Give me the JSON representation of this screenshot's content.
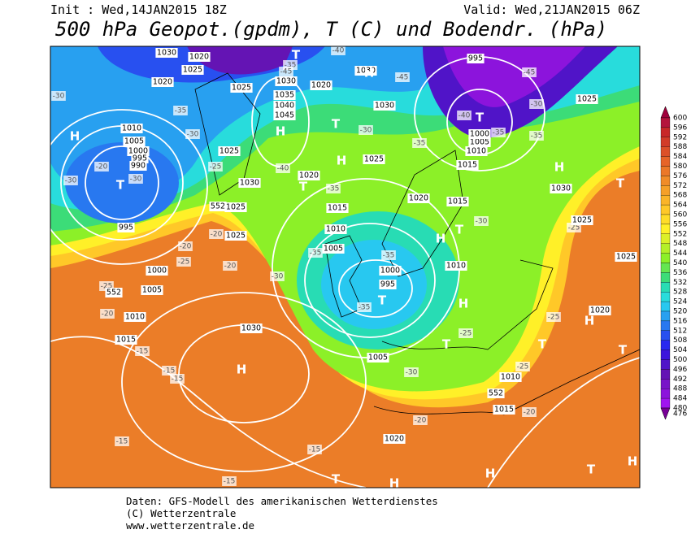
{
  "header": {
    "init": "Init : Wed,14JAN2015 18Z",
    "valid": "Valid: Wed,21JAN2015 06Z",
    "title": "500 hPa Geopot.(gpdm), T (C) und Bodendr. (hPa)"
  },
  "colorbar": {
    "levels": [
      "600",
      "596",
      "592",
      "588",
      "584",
      "580",
      "576",
      "572",
      "568",
      "564",
      "560",
      "556",
      "552",
      "548",
      "544",
      "540",
      "536",
      "532",
      "528",
      "524",
      "520",
      "516",
      "512",
      "508",
      "504",
      "500",
      "496",
      "492",
      "488",
      "484",
      "480",
      "476"
    ],
    "colors": [
      "#a0003c",
      "#b4143c",
      "#c82828",
      "#d23c28",
      "#dc5028",
      "#e66428",
      "#eb7828",
      "#f08c28",
      "#f5a028",
      "#fab428",
      "#ffc828",
      "#ffdc28",
      "#fff028",
      "#dcf028",
      "#b4f028",
      "#8cf028",
      "#64e650",
      "#3cdc78",
      "#28dcb4",
      "#28dcdc",
      "#28c8f0",
      "#28a0f0",
      "#2878f0",
      "#2850f0",
      "#2828f0",
      "#3c14dc",
      "#5014c8",
      "#6414b4",
      "#7814c8",
      "#8c14dc",
      "#a014f0",
      "#780096"
    ]
  },
  "map_labels": {
    "pressure": [
      "1030",
      "1020",
      "1025",
      "1020",
      "1025",
      "1030",
      "1035",
      "1040",
      "1045",
      "1020",
      "1030",
      "1030",
      "995",
      "1025",
      "1010",
      "1005",
      "1000",
      "995",
      "990",
      "1025",
      "1025",
      "1030",
      "1020",
      "1015",
      "1010",
      "1005",
      "1000",
      "995",
      "1020",
      "1015",
      "1010",
      "995",
      "1025",
      "1025",
      "1000",
      "1005",
      "1010",
      "1015",
      "1030",
      "1005",
      "1010",
      "1015",
      "1020",
      "1025",
      "1025",
      "1020",
      "1030",
      "1015",
      "1010",
      "1005",
      "1000",
      "552",
      "552",
      "552"
    ],
    "temperature": [
      "-30",
      "-35",
      "-30",
      "-20",
      "-30",
      "-30",
      "-25",
      "-35",
      "-45",
      "-40",
      "-45",
      "-30",
      "-35",
      "-35",
      "-40",
      "-45",
      "-30",
      "-35",
      "-35",
      "-40",
      "-30",
      "-35",
      "-35",
      "-35",
      "-30",
      "-20",
      "-20",
      "-20",
      "-25",
      "-25",
      "-20",
      "-15",
      "-15",
      "-15",
      "-15",
      "-15",
      "-15",
      "-25",
      "-25",
      "-25",
      "-30",
      "-20",
      "-20",
      "-25"
    ],
    "centers": [
      "H",
      "T",
      "H",
      "T",
      "H",
      "T",
      "H",
      "H",
      "T",
      "T",
      "H",
      "T",
      "T",
      "H",
      "T",
      "H",
      "T",
      "H",
      "T",
      "H",
      "T",
      "H",
      "T",
      "H",
      "T"
    ]
  },
  "footer": {
    "lines": [
      "Daten: GFS-Modell des amerikanischen Wetterdienstes",
      "(C) Wetterzentrale",
      "www.wetterzentrale.de"
    ]
  }
}
